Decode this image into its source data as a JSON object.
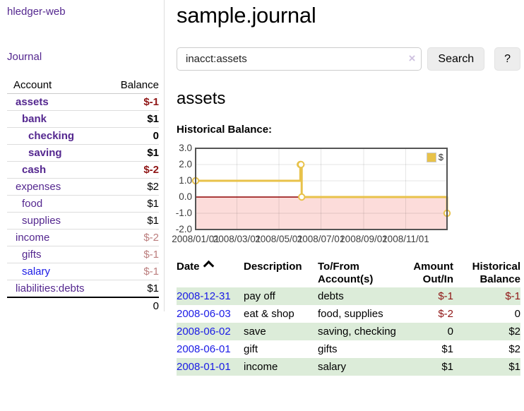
{
  "app_title": "hledger-web",
  "colors": {
    "visited_link": "#54278f",
    "link": "#1a1ae6",
    "negative": "#8f1515",
    "negative_dim": "#bb7d7d",
    "row_green": "#dcecd9",
    "chart_line": "#E8C24A"
  },
  "sidebar": {
    "journal_link": "Journal",
    "accounts_table": {
      "account_header": "Account",
      "balance_header": "Balance",
      "rows": [
        {
          "name": "assets",
          "balance": "$-1"
        },
        {
          "name": "bank",
          "balance": "$1"
        },
        {
          "name": "checking",
          "balance": "0"
        },
        {
          "name": "saving",
          "balance": "$1"
        },
        {
          "name": "cash",
          "balance": "$-2"
        },
        {
          "name": "expenses",
          "balance": "$2"
        },
        {
          "name": "food",
          "balance": "$1"
        },
        {
          "name": "supplies",
          "balance": "$1"
        },
        {
          "name": "income",
          "balance": "$-2"
        },
        {
          "name": "gifts",
          "balance": "$-1"
        },
        {
          "name": "salary",
          "balance": "$-1"
        },
        {
          "name": "liabilities:debts",
          "balance": "$1"
        }
      ],
      "total": "0"
    }
  },
  "main": {
    "title": "sample.journal",
    "search": {
      "value": "inacct:assets",
      "clear_icon": "×",
      "search_button": "Search",
      "help_button": "?"
    },
    "account_heading": "assets",
    "register": {
      "headers": {
        "date": "Date",
        "description": "Description",
        "accounts": "To/From Account(s)",
        "amount": "Amount Out/In",
        "balance": "Historical Balance"
      },
      "rows": [
        {
          "date": "2008-12-31",
          "description": "pay off",
          "accounts": "debts",
          "amount": "$-1",
          "balance": "$-1"
        },
        {
          "date": "2008-06-03",
          "description": "eat & shop",
          "accounts": "food, supplies",
          "amount": "$-2",
          "balance": "0"
        },
        {
          "date": "2008-06-02",
          "description": "save",
          "accounts": "saving, checking",
          "amount": "0",
          "balance": "$2"
        },
        {
          "date": "2008-06-01",
          "description": "gift",
          "accounts": "gifts",
          "amount": "$1",
          "balance": "$2"
        },
        {
          "date": "2008-01-01",
          "description": "income",
          "accounts": "salary",
          "amount": "$1",
          "balance": "$1"
        }
      ]
    }
  },
  "chart_data": {
    "type": "line",
    "title": "Historical Balance:",
    "legend": {
      "position": "top-right",
      "entries": [
        "$"
      ]
    },
    "series": [
      {
        "name": "$",
        "color": "#E8C24A",
        "steps": true,
        "points": [
          [
            "2008-01-01",
            1
          ],
          [
            "2008-06-01",
            2
          ],
          [
            "2008-06-02",
            2
          ],
          [
            "2008-06-03",
            0
          ],
          [
            "2008-12-31",
            -1
          ]
        ]
      }
    ],
    "x_range": [
      "2008-01-01",
      "2008-12-31"
    ],
    "ylim": [
      -2,
      3
    ],
    "yticks": [
      3,
      2,
      1,
      0,
      -1,
      -2
    ],
    "ytick_labels": [
      "3.0",
      "2.0",
      "1.0",
      "0.0",
      "-1.0",
      "-2.0"
    ],
    "xtick_labels": [
      "2008/01/01",
      "2008/03/01",
      "2008/05/01",
      "2008/07/01",
      "2008/09/01",
      "2008/11/01"
    ],
    "grid": true,
    "negative_region_color": "#fcdcda",
    "zero_line_color": "#8e0000",
    "border_color": "#545454"
  }
}
